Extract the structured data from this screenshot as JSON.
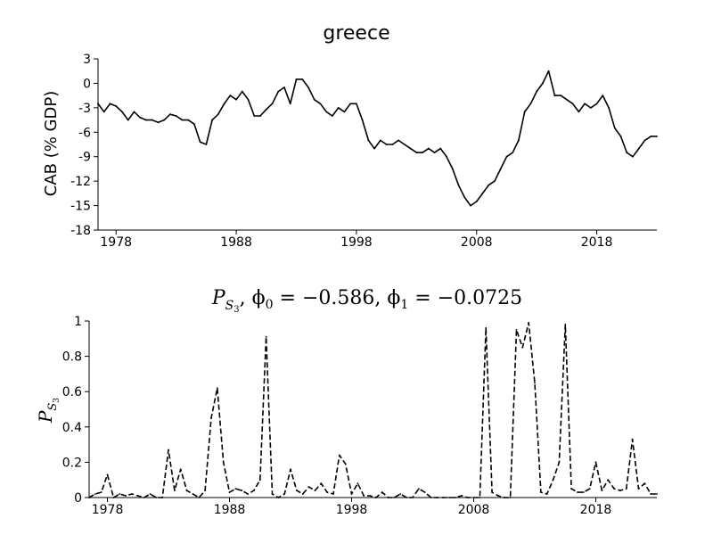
{
  "chart_data": [
    {
      "type": "line",
      "title": "greece",
      "xlabel": "",
      "ylabel": "CAB (% GDP)",
      "xlim": [
        1976.5,
        2023.0
      ],
      "ylim": [
        -18,
        3
      ],
      "yticks": [
        "3",
        "0",
        "-3",
        "-6",
        "-9",
        "-12",
        "-15",
        "-18"
      ],
      "xticks": [
        "1978",
        "1988",
        "1998",
        "2008",
        "2018"
      ],
      "grid": false,
      "line_style": "solid",
      "color": "#000000",
      "series": [
        {
          "x": [
            1976.5,
            1977.0,
            1977.5,
            1978.0,
            1978.5,
            1979.0,
            1979.5,
            1980.0,
            1980.5,
            1981.0,
            1981.5,
            1982.0,
            1982.5,
            1983.0,
            1983.5,
            1984.0,
            1984.5,
            1985.0,
            1985.5,
            1986.0,
            1986.5,
            1987.0,
            1987.5,
            1988.0,
            1988.5,
            1989.0,
            1989.5,
            1990.0,
            1990.5,
            1991.0,
            1991.5,
            1992.0,
            1992.5,
            1993.0,
            1993.5,
            1994.0,
            1994.5,
            1995.0,
            1995.5,
            1996.0,
            1996.5,
            1997.0,
            1997.5,
            1998.0,
            1998.5,
            1999.0,
            1999.5,
            2000.0,
            2000.5,
            2001.0,
            2001.5,
            2002.0,
            2002.5,
            2003.0,
            2003.5,
            2004.0,
            2004.5,
            2005.0,
            2005.5,
            2006.0,
            2006.5,
            2007.0,
            2007.5,
            2008.0,
            2008.5,
            2009.0,
            2009.5,
            2010.0,
            2010.5,
            2011.0,
            2011.5,
            2012.0,
            2012.5,
            2013.0,
            2013.5,
            2014.0,
            2014.5,
            2015.0,
            2015.5,
            2016.0,
            2016.5,
            2017.0,
            2017.5,
            2018.0,
            2018.5,
            2019.0,
            2019.5,
            2020.0,
            2020.5,
            2021.0,
            2021.5,
            2022.0,
            2022.5,
            2023.0
          ],
          "values": [
            -2.5,
            -3.5,
            -2.5,
            -2.8,
            -3.5,
            -4.5,
            -3.5,
            -4.2,
            -4.5,
            -4.5,
            -4.8,
            -4.5,
            -3.8,
            -4.0,
            -4.5,
            -4.5,
            -5.0,
            -7.2,
            -7.5,
            -4.5,
            -3.8,
            -2.5,
            -1.5,
            -2.0,
            -1.0,
            -2.0,
            -4.0,
            -4.0,
            -3.2,
            -2.5,
            -1.0,
            -0.5,
            -2.5,
            0.5,
            0.5,
            -0.5,
            -2.0,
            -2.5,
            -3.5,
            -4.0,
            -3.0,
            -3.5,
            -2.5,
            -2.5,
            -4.5,
            -7.0,
            -8.0,
            -7.0,
            -7.5,
            -7.5,
            -7.0,
            -7.5,
            -8.0,
            -8.5,
            -8.5,
            -8.0,
            -8.5,
            -8.0,
            -9.0,
            -10.5,
            -12.5,
            -14.0,
            -15.0,
            -14.5,
            -13.5,
            -12.5,
            -12.0,
            -10.5,
            -9.0,
            -8.5,
            -7.0,
            -3.5,
            -2.5,
            -1.0,
            0.0,
            1.5,
            -1.5,
            -1.5,
            -2.0,
            -2.5,
            -3.5,
            -2.5,
            -3.0,
            -2.5,
            -1.5,
            -3.0,
            -5.5,
            -6.5,
            -8.5,
            -9.0,
            -8.0,
            -7.0,
            -6.5,
            -6.5
          ]
        }
      ]
    },
    {
      "type": "line",
      "title": "P_{S_3}, φ_0 = −0.586, φ_1 = −0.0725",
      "title_parts": {
        "main": "P",
        "sub": "S",
        "subsub": "3",
        "rest": ", ϕ",
        "phi0_sub": "0",
        "phi0_val": " = −0.586, ϕ",
        "phi1_sub": "1",
        "phi1_val": " = −0.0725"
      },
      "ylabel": "P_{S_3}",
      "ylabel_parts": {
        "main": "P",
        "sub": "S",
        "subsub": "3"
      },
      "xlabel": "",
      "xlim": [
        1976.5,
        2023.0
      ],
      "ylim": [
        0,
        1
      ],
      "yticks": [
        "0",
        "0.2",
        "0.4",
        "0.6",
        "0.8",
        "1"
      ],
      "xticks": [
        "1978",
        "1988",
        "1998",
        "2008",
        "2018"
      ],
      "grid": false,
      "line_style": "dashed",
      "color": "#000000",
      "series": [
        {
          "x": [
            1976.5,
            1977.0,
            1977.5,
            1978.0,
            1978.5,
            1979.0,
            1979.5,
            1980.0,
            1980.5,
            1981.0,
            1981.5,
            1982.0,
            1982.5,
            1983.0,
            1983.5,
            1984.0,
            1984.5,
            1985.0,
            1985.5,
            1986.0,
            1986.5,
            1987.0,
            1987.5,
            1988.0,
            1988.5,
            1989.0,
            1989.5,
            1990.0,
            1990.5,
            1991.0,
            1991.5,
            1992.0,
            1992.5,
            1993.0,
            1993.5,
            1994.0,
            1994.5,
            1995.0,
            1995.5,
            1996.0,
            1996.5,
            1997.0,
            1997.5,
            1998.0,
            1998.5,
            1999.0,
            1999.5,
            2000.0,
            2000.5,
            2001.0,
            2001.5,
            2002.0,
            2002.5,
            2003.0,
            2003.5,
            2004.0,
            2004.5,
            2005.0,
            2005.5,
            2006.0,
            2006.5,
            2007.0,
            2007.5,
            2008.0,
            2008.5,
            2009.0,
            2009.5,
            2010.0,
            2010.5,
            2011.0,
            2011.5,
            2012.0,
            2012.5,
            2013.0,
            2013.5,
            2014.0,
            2014.5,
            2015.0,
            2015.5,
            2016.0,
            2016.5,
            2017.0,
            2017.5,
            2018.0,
            2018.5,
            2019.0,
            2019.5,
            2020.0,
            2020.5,
            2021.0,
            2021.5,
            2022.0,
            2022.5,
            2023.0
          ],
          "values": [
            0.0,
            0.02,
            0.03,
            0.13,
            0.0,
            0.02,
            0.01,
            0.02,
            0.01,
            0.0,
            0.02,
            0.0,
            0.0,
            0.27,
            0.04,
            0.16,
            0.04,
            0.02,
            0.0,
            0.04,
            0.45,
            0.62,
            0.2,
            0.03,
            0.05,
            0.04,
            0.02,
            0.04,
            0.1,
            0.91,
            0.02,
            0.0,
            0.02,
            0.16,
            0.04,
            0.02,
            0.06,
            0.04,
            0.08,
            0.03,
            0.02,
            0.24,
            0.19,
            0.02,
            0.08,
            0.01,
            0.01,
            0.0,
            0.03,
            0.0,
            0.0,
            0.02,
            0.0,
            0.0,
            0.05,
            0.03,
            0.0,
            0.0,
            0.0,
            0.0,
            0.0,
            0.01,
            0.0,
            0.0,
            0.0,
            0.96,
            0.03,
            0.01,
            0.0,
            0.0,
            0.95,
            0.85,
            0.99,
            0.65,
            0.03,
            0.02,
            0.1,
            0.2,
            0.98,
            0.05,
            0.03,
            0.03,
            0.05,
            0.2,
            0.04,
            0.1,
            0.05,
            0.04,
            0.05,
            0.33,
            0.05,
            0.08,
            0.02,
            0.02
          ]
        }
      ]
    }
  ]
}
